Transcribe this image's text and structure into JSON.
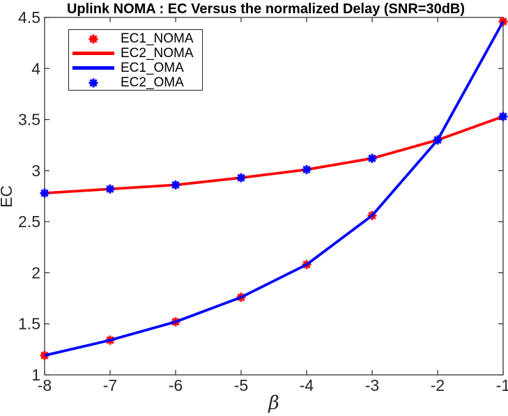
{
  "chart_data": {
    "type": "line",
    "title": "Uplink NOMA : EC Versus the normalized Delay (SNR=30dB)",
    "xlabel": "β",
    "ylabel": "EC",
    "xlim": [
      -8,
      -1
    ],
    "ylim": [
      1,
      4.5
    ],
    "xticks": [
      -8,
      -7,
      -6,
      -5,
      -4,
      -3,
      -2,
      -1
    ],
    "yticks": [
      1,
      1.5,
      2,
      2.5,
      3,
      3.5,
      4,
      4.5
    ],
    "x": [
      -8,
      -7,
      -6,
      -5,
      -4,
      -3,
      -2,
      -1
    ],
    "grid": false,
    "legend_position": "top-left",
    "colors": {
      "red": "#FF0000",
      "blue": "#0000FF",
      "axis": "#262626",
      "title": "#000000"
    },
    "series": [
      {
        "name": "EC1_NOMA",
        "style": "marker",
        "marker": "asterisk",
        "color": "#FF0000",
        "values": [
          1.19,
          1.34,
          1.52,
          1.76,
          2.08,
          2.56,
          3.3,
          4.46
        ]
      },
      {
        "name": "EC2_NOMA",
        "style": "line",
        "color": "#FF0000",
        "values": [
          2.78,
          2.82,
          2.86,
          2.93,
          3.01,
          3.12,
          3.3,
          3.53
        ]
      },
      {
        "name": "EC1_OMA",
        "style": "line",
        "color": "#0000FF",
        "values": [
          1.19,
          1.34,
          1.52,
          1.76,
          2.08,
          2.56,
          3.3,
          4.46
        ]
      },
      {
        "name": "EC2_OMA",
        "style": "marker",
        "marker": "asterisk",
        "color": "#0000FF",
        "values": [
          2.78,
          2.82,
          2.86,
          2.93,
          3.01,
          3.12,
          3.3,
          3.53
        ]
      }
    ]
  }
}
